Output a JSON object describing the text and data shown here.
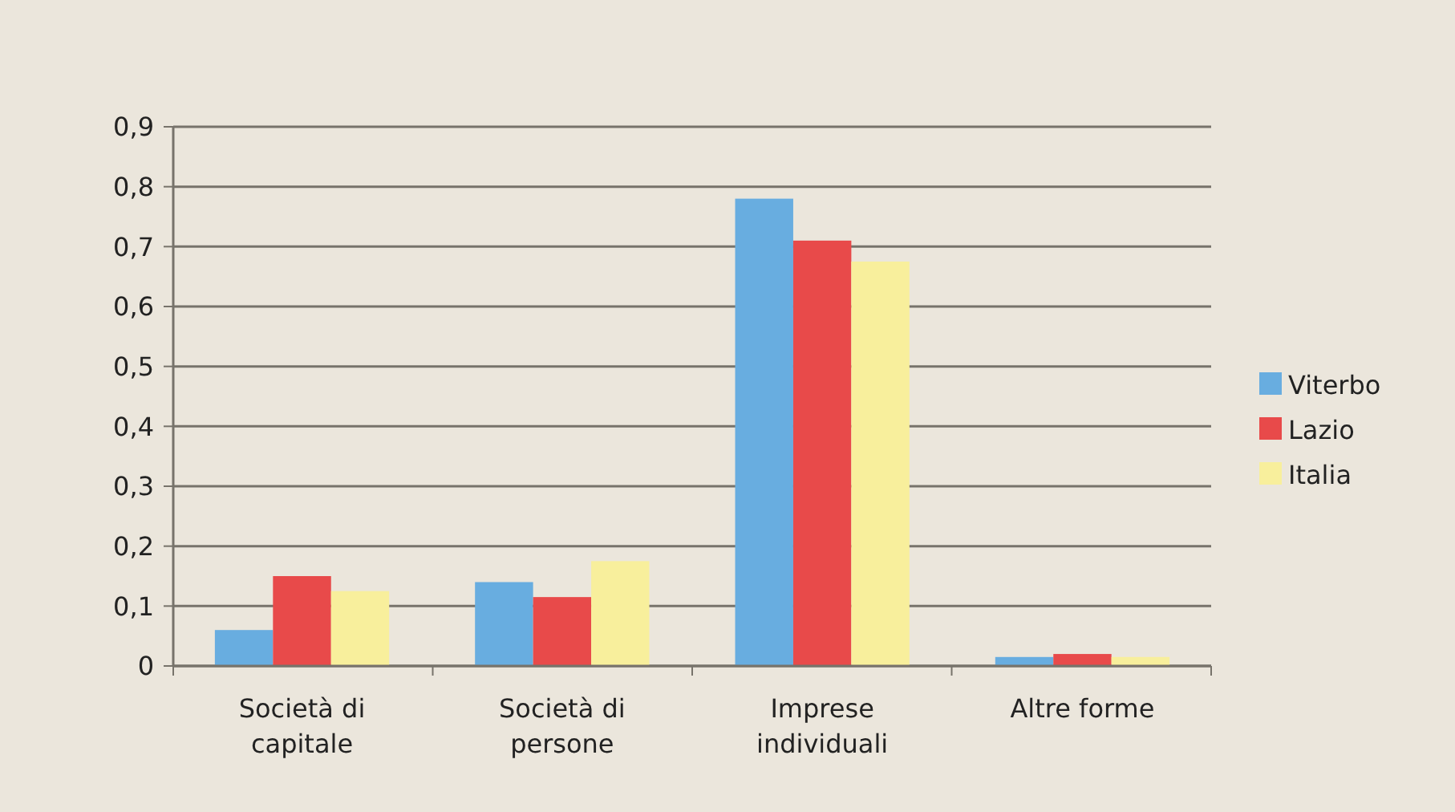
{
  "chart_data": {
    "type": "bar",
    "categories": [
      "Società di\ncapitale",
      "Società di\npersone",
      "Imprese\nindividuali",
      "Altre forme"
    ],
    "series": [
      {
        "name": "Viterbo",
        "color": "#68ade0",
        "values": [
          0.06,
          0.14,
          0.78,
          0.015
        ]
      },
      {
        "name": "Lazio",
        "color": "#e84a4a",
        "values": [
          0.15,
          0.115,
          0.71,
          0.02
        ]
      },
      {
        "name": "Italia",
        "color": "#f8ef9c",
        "values": [
          0.125,
          0.175,
          0.675,
          0.015
        ]
      }
    ],
    "ylim": [
      0,
      0.9
    ],
    "yticks": [
      {
        "value": 0,
        "label": "0"
      },
      {
        "value": 0.1,
        "label": "0,1"
      },
      {
        "value": 0.2,
        "label": "0,2"
      },
      {
        "value": 0.3,
        "label": "0,3"
      },
      {
        "value": 0.4,
        "label": "0,4"
      },
      {
        "value": 0.5,
        "label": "0,5"
      },
      {
        "value": 0.6,
        "label": "0,6"
      },
      {
        "value": 0.7,
        "label": "0,7"
      },
      {
        "value": 0.8,
        "label": "0,8"
      },
      {
        "value": 0.9,
        "label": "0,9"
      }
    ],
    "grid": "y",
    "legend": "right"
  }
}
